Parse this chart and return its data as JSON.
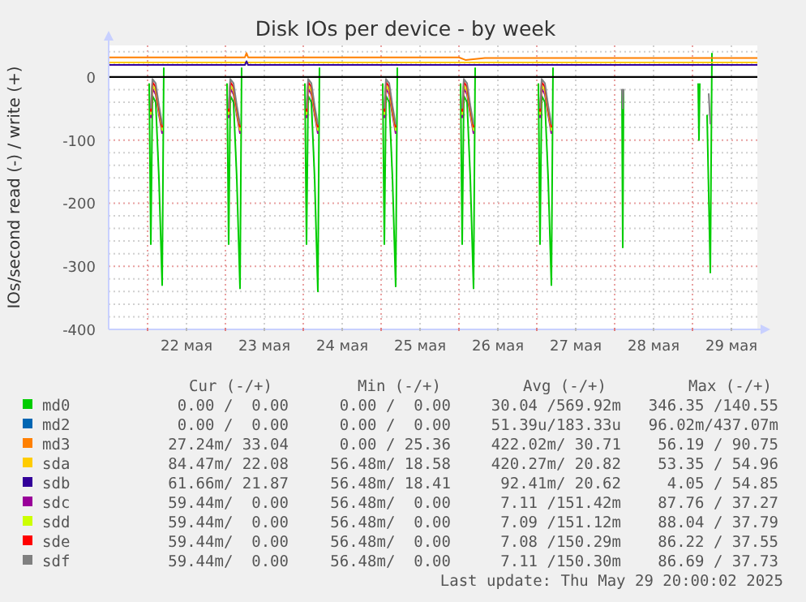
{
  "chart_data": {
    "type": "line",
    "title": "Disk IOs per device - by week",
    "ylabel": "IOs/second read (-) / write (+)",
    "xlim": [
      "2025-05-21T12:00",
      "2025-05-29T20:00"
    ],
    "xticks": [
      {
        "value": "2025-05-22T00:00",
        "label": null
      },
      {
        "value": "2025-05-22T12:00",
        "label": "22 мая"
      },
      {
        "value": "2025-05-23T00:00",
        "label": null
      },
      {
        "value": "2025-05-23T12:00",
        "label": "23 мая"
      },
      {
        "value": "2025-05-24T00:00",
        "label": null
      },
      {
        "value": "2025-05-24T12:00",
        "label": "24 мая"
      },
      {
        "value": "2025-05-25T00:00",
        "label": null
      },
      {
        "value": "2025-05-25T12:00",
        "label": "25 мая"
      },
      {
        "value": "2025-05-26T00:00",
        "label": null
      },
      {
        "value": "2025-05-26T12:00",
        "label": "26 мая"
      },
      {
        "value": "2025-05-27T00:00",
        "label": null
      },
      {
        "value": "2025-05-27T12:00",
        "label": "27 мая"
      },
      {
        "value": "2025-05-28T00:00",
        "label": null
      },
      {
        "value": "2025-05-28T12:00",
        "label": "28 мая"
      },
      {
        "value": "2025-05-29T00:00",
        "label": null
      },
      {
        "value": "2025-05-29T12:00",
        "label": "29 мая"
      }
    ],
    "ylim": [
      -400,
      50
    ],
    "yticks": [
      -400,
      {
        "value": -380,
        "label": null
      },
      {
        "value": -360,
        "label": null
      },
      {
        "value": -340,
        "label": null
      },
      {
        "value": -320,
        "label": null
      },
      -300,
      {
        "value": -280,
        "label": null
      },
      {
        "value": -260,
        "label": null
      },
      {
        "value": -240,
        "label": null
      },
      {
        "value": -220,
        "label": null
      },
      -200,
      {
        "value": -180,
        "label": null
      },
      {
        "value": -160,
        "label": null
      },
      {
        "value": -140,
        "label": null
      },
      {
        "value": -120,
        "label": null
      },
      -100,
      {
        "value": -80,
        "label": null
      },
      {
        "value": -60,
        "label": null
      },
      {
        "value": -40,
        "label": null
      },
      {
        "value": -20,
        "label": null
      },
      0,
      {
        "value": 20,
        "label": null
      },
      {
        "value": 40,
        "label": null
      }
    ],
    "grid": true,
    "legend": "bottom",
    "marker": "none",
    "ref_lines": [
      {
        "axis": "y",
        "value": 0,
        "color": "#000000"
      }
    ],
    "series": [
      {
        "name": "md0",
        "color": "#00cc00",
        "x": [
          "2025-05-22T00:30",
          "2025-05-22T01:00",
          "2025-05-22T01:30",
          "2025-05-22T02:30",
          "2025-05-22T03:30",
          "2025-05-22T04:30",
          "2025-05-22T05:00",
          "2025-05-22T05:30",
          "2025-05-23T00:30",
          "2025-05-23T01:00",
          "2025-05-23T01:30",
          "2025-05-23T02:30",
          "2025-05-23T03:30",
          "2025-05-23T04:30",
          "2025-05-23T05:00",
          "2025-05-23T05:30",
          "2025-05-24T00:30",
          "2025-05-24T01:00",
          "2025-05-24T01:30",
          "2025-05-24T02:30",
          "2025-05-24T03:30",
          "2025-05-24T04:30",
          "2025-05-24T05:00",
          "2025-05-24T05:30",
          "2025-05-25T00:30",
          "2025-05-25T01:00",
          "2025-05-25T01:30",
          "2025-05-25T02:30",
          "2025-05-25T03:30",
          "2025-05-25T04:30",
          "2025-05-25T05:00",
          "2025-05-25T05:30",
          "2025-05-26T00:30",
          "2025-05-26T01:00",
          "2025-05-26T01:30",
          "2025-05-26T02:30",
          "2025-05-26T03:30",
          "2025-05-26T04:30",
          "2025-05-26T05:00",
          "2025-05-26T05:30",
          "2025-05-27T00:30",
          "2025-05-27T01:00",
          "2025-05-27T01:30",
          "2025-05-27T02:30",
          "2025-05-27T03:30",
          "2025-05-27T04:30",
          "2025-05-27T05:00",
          "2025-05-27T05:30",
          "2025-05-28T02:15",
          "2025-05-28T02:30",
          "2025-05-28T02:45",
          "2025-05-28T03:00",
          "2025-05-29T01:45",
          "2025-05-29T02:00",
          "2025-05-29T02:15",
          "2025-05-29T02:30",
          "2025-05-29T04:30",
          "2025-05-29T05:30",
          "2025-05-29T06:00"
        ],
        "values": [
          -10,
          -265,
          -30,
          -40,
          -160,
          -330,
          15,
          null,
          -10,
          -265,
          -30,
          -40,
          -160,
          -335,
          15,
          null,
          -10,
          -265,
          -30,
          -40,
          -160,
          -340,
          15,
          null,
          -10,
          -265,
          -30,
          -40,
          -160,
          -332,
          15,
          null,
          -10,
          -265,
          -30,
          -40,
          -160,
          -335,
          15,
          null,
          -10,
          -265,
          -30,
          -40,
          -160,
          -330,
          15,
          null,
          -20,
          -270,
          -20,
          null,
          -10,
          -100,
          -10,
          null,
          -60,
          -310,
          38
        ]
      },
      {
        "name": "md2",
        "color": "#0066b3"
      },
      {
        "name": "md3",
        "color": "#ff8000",
        "x": [
          "2025-05-21T12:00",
          "2025-05-23T06:00",
          "2025-05-23T06:30",
          "2025-05-23T07:00",
          "2025-05-26T00:00",
          "2025-05-26T02:00",
          "2025-05-26T08:00",
          "2025-05-29T20:00"
        ],
        "values": [
          31,
          31,
          38,
          31,
          31,
          27,
          30,
          30
        ]
      },
      {
        "name": "sda",
        "color": "#ffcc00",
        "x": [
          "2025-05-21T12:00",
          "2025-05-29T20:00"
        ],
        "values": [
          23,
          23
        ]
      },
      {
        "name": "sdb",
        "color": "#330099",
        "x": [
          "2025-05-21T12:00",
          "2025-05-23T06:00",
          "2025-05-23T06:30",
          "2025-05-23T07:00",
          "2025-05-29T20:00"
        ],
        "values": [
          19,
          19,
          25,
          19,
          19
        ]
      },
      {
        "name": "sdc",
        "color": "#990099",
        "x": [
          "2025-05-22T01:00",
          "2025-05-22T01:30",
          "2025-05-22T02:30",
          "2025-05-22T03:30",
          "2025-05-22T04:30",
          "2025-05-22T05:00",
          "2025-05-23T01:00",
          "2025-05-23T01:30",
          "2025-05-23T02:30",
          "2025-05-23T03:30",
          "2025-05-23T04:30",
          "2025-05-23T05:00",
          "2025-05-24T01:00",
          "2025-05-24T01:30",
          "2025-05-24T02:30",
          "2025-05-24T03:30",
          "2025-05-24T04:30",
          "2025-05-24T05:00",
          "2025-05-25T01:00",
          "2025-05-25T01:30",
          "2025-05-25T02:30",
          "2025-05-25T03:30",
          "2025-05-25T04:30",
          "2025-05-25T05:00",
          "2025-05-26T01:00",
          "2025-05-26T01:30",
          "2025-05-26T02:30",
          "2025-05-26T03:30",
          "2025-05-26T04:30",
          "2025-05-26T05:00",
          "2025-05-27T01:00",
          "2025-05-27T01:30",
          "2025-05-27T02:30",
          "2025-05-27T03:30",
          "2025-05-27T04:30"
        ],
        "values": [
          -65,
          -18,
          -28,
          -60,
          -90,
          null,
          -65,
          -18,
          -28,
          -60,
          -90,
          null,
          -65,
          -18,
          -28,
          -60,
          -90,
          null,
          -65,
          -18,
          -28,
          -60,
          -90,
          null,
          -65,
          -18,
          -28,
          -60,
          -90,
          null,
          -65,
          -18,
          -28,
          -60,
          -90
        ]
      },
      {
        "name": "sdd",
        "color": "#ccff00",
        "x": [
          "2025-05-22T01:00",
          "2025-05-22T01:30",
          "2025-05-22T02:30",
          "2025-05-22T03:30",
          "2025-05-22T04:30",
          "2025-05-22T05:00",
          "2025-05-23T01:00",
          "2025-05-23T01:30",
          "2025-05-23T02:30",
          "2025-05-23T03:30",
          "2025-05-23T04:30",
          "2025-05-23T05:00",
          "2025-05-24T01:00",
          "2025-05-24T01:30",
          "2025-05-24T02:30",
          "2025-05-24T03:30",
          "2025-05-24T04:30",
          "2025-05-24T05:00",
          "2025-05-25T01:00",
          "2025-05-25T01:30",
          "2025-05-25T02:30",
          "2025-05-25T03:30",
          "2025-05-25T04:30",
          "2025-05-25T05:00",
          "2025-05-26T01:00",
          "2025-05-26T01:30",
          "2025-05-26T02:30",
          "2025-05-26T03:30",
          "2025-05-26T04:30",
          "2025-05-26T05:00",
          "2025-05-27T01:00",
          "2025-05-27T01:30",
          "2025-05-27T02:30",
          "2025-05-27T03:30",
          "2025-05-27T04:30"
        ],
        "values": [
          -60,
          -13,
          -22,
          -55,
          -85,
          null,
          -60,
          -13,
          -22,
          -55,
          -85,
          null,
          -60,
          -13,
          -22,
          -55,
          -85,
          null,
          -60,
          -13,
          -22,
          -55,
          -85,
          null,
          -60,
          -13,
          -22,
          -55,
          -85,
          null,
          -60,
          -13,
          -22,
          -55,
          -85
        ]
      },
      {
        "name": "sde",
        "color": "#ff0000",
        "x": [
          "2025-05-22T01:00",
          "2025-05-22T01:30",
          "2025-05-22T02:30",
          "2025-05-22T03:30",
          "2025-05-22T04:30",
          "2025-05-22T05:00",
          "2025-05-23T01:00",
          "2025-05-23T01:30",
          "2025-05-23T02:30",
          "2025-05-23T03:30",
          "2025-05-23T04:30",
          "2025-05-23T05:00",
          "2025-05-24T01:00",
          "2025-05-24T01:30",
          "2025-05-24T02:30",
          "2025-05-24T03:30",
          "2025-05-24T04:30",
          "2025-05-24T05:00",
          "2025-05-25T01:00",
          "2025-05-25T01:30",
          "2025-05-25T02:30",
          "2025-05-25T03:30",
          "2025-05-25T04:30",
          "2025-05-25T05:00",
          "2025-05-26T01:00",
          "2025-05-26T01:30",
          "2025-05-26T02:30",
          "2025-05-26T03:30",
          "2025-05-26T04:30",
          "2025-05-26T05:00",
          "2025-05-27T01:00",
          "2025-05-27T01:30",
          "2025-05-27T02:30",
          "2025-05-27T03:30",
          "2025-05-27T04:30"
        ],
        "values": [
          -55,
          -8,
          -16,
          -50,
          -80,
          null,
          -55,
          -8,
          -16,
          -50,
          -80,
          null,
          -55,
          -8,
          -16,
          -50,
          -80,
          null,
          -55,
          -8,
          -16,
          -50,
          -80,
          null,
          -55,
          -8,
          -16,
          -50,
          -80,
          null,
          -55,
          -8,
          -16,
          -50,
          -80
        ]
      },
      {
        "name": "sdf",
        "color": "#808080",
        "x": [
          "2025-05-22T01:00",
          "2025-05-22T01:30",
          "2025-05-22T02:30",
          "2025-05-22T03:30",
          "2025-05-22T04:30",
          "2025-05-22T05:00",
          "2025-05-23T01:00",
          "2025-05-23T01:30",
          "2025-05-23T02:30",
          "2025-05-23T03:30",
          "2025-05-23T04:30",
          "2025-05-23T05:00",
          "2025-05-24T01:00",
          "2025-05-24T01:30",
          "2025-05-24T02:30",
          "2025-05-24T03:30",
          "2025-05-24T04:30",
          "2025-05-24T05:00",
          "2025-05-25T01:00",
          "2025-05-25T01:30",
          "2025-05-25T02:30",
          "2025-05-25T03:30",
          "2025-05-25T04:30",
          "2025-05-25T05:00",
          "2025-05-26T01:00",
          "2025-05-26T01:30",
          "2025-05-26T02:30",
          "2025-05-26T03:30",
          "2025-05-26T04:30",
          "2025-05-26T05:00",
          "2025-05-27T01:00",
          "2025-05-27T01:30",
          "2025-05-27T02:30",
          "2025-05-27T03:30",
          "2025-05-27T04:30",
          "2025-05-27T05:00",
          "2025-05-28T02:15",
          "2025-05-28T02:30",
          "2025-05-28T02:45",
          "2025-05-28T03:00",
          "2025-05-29T05:00",
          "2025-05-29T05:30"
        ],
        "values": [
          -50,
          -3,
          -10,
          -45,
          -75,
          null,
          -50,
          -3,
          -10,
          -45,
          -75,
          null,
          -50,
          -3,
          -10,
          -45,
          -75,
          null,
          -50,
          -3,
          -10,
          -45,
          -75,
          null,
          -50,
          -3,
          -10,
          -45,
          -75,
          null,
          -50,
          -3,
          -10,
          -45,
          -75,
          null,
          -19,
          -50,
          -19,
          null,
          -26,
          -75
        ]
      }
    ],
    "annotations": [
      "Cur (-/+)",
      "Min (-/+)",
      "Avg (-/+)",
      "Max (-/+)",
      "0.00 /  0.00",
      "0.00 /  0.00",
      "30.04 /569.92m",
      "346.35 /140.55",
      "0.00 /  0.00",
      "0.00 /  0.00",
      "51.39u/183.33u",
      "96.02m/437.07m",
      "27.24m/ 33.04",
      "0.00 / 25.36",
      "422.02m/ 30.71",
      "56.19 / 90.75",
      "84.47m/ 22.08",
      "56.48m/ 18.58",
      "420.27m/ 20.82",
      "53.35 / 54.96",
      "61.66m/ 21.87",
      "56.48m/ 18.41",
      "92.41m/ 20.62",
      "4.05 / 54.85",
      "59.44m/  0.00",
      "56.48m/  0.00",
      "7.11 /151.42m",
      "87.76 / 37.27",
      "59.44m/  0.00",
      "56.48m/  0.00",
      "7.09 /151.12m",
      "88.04 / 37.79",
      "59.44m/  0.00",
      "56.48m/  0.00",
      "7.08 /150.29m",
      "86.22 / 37.55",
      "59.44m/  0.00",
      "56.48m/  0.00",
      "7.11 /150.30m",
      "86.69 / 37.73",
      "Last update: Thu May 29 20:00:02 2025"
    ]
  }
}
